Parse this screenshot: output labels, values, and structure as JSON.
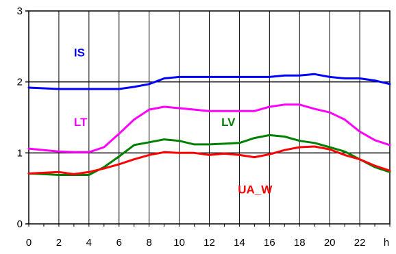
{
  "chart_data": {
    "type": "line",
    "title": "",
    "xlabel": "",
    "ylabel": "",
    "x_unit_label": "h",
    "xlim": [
      0,
      24
    ],
    "ylim": [
      0,
      3
    ],
    "grid": true,
    "x_ticks": [
      {
        "value": 0,
        "label": "0"
      },
      {
        "value": 2,
        "label": "2"
      },
      {
        "value": 4,
        "label": "4"
      },
      {
        "value": 6,
        "label": "6"
      },
      {
        "value": 8,
        "label": "8"
      },
      {
        "value": 10,
        "label": "10"
      },
      {
        "value": 12,
        "label": "12"
      },
      {
        "value": 14,
        "label": "14"
      },
      {
        "value": 16,
        "label": "16"
      },
      {
        "value": 18,
        "label": "18"
      },
      {
        "value": 20,
        "label": "20"
      },
      {
        "value": 22,
        "label": "22"
      }
    ],
    "y_ticks": [
      {
        "value": 0,
        "label": "0"
      },
      {
        "value": 1,
        "label": "1"
      },
      {
        "value": 2,
        "label": "2"
      },
      {
        "value": 3,
        "label": "3"
      }
    ],
    "x": [
      0,
      1,
      2,
      3,
      4,
      5,
      6,
      7,
      8,
      9,
      10,
      11,
      12,
      13,
      14,
      15,
      16,
      17,
      18,
      19,
      20,
      21,
      22,
      23,
      24
    ],
    "series": [
      {
        "name": "IS",
        "color": "#0000ff",
        "label_at": [
          3,
          2.36
        ],
        "values": [
          1.92,
          1.91,
          1.9,
          1.9,
          1.9,
          1.9,
          1.9,
          1.93,
          1.97,
          2.05,
          2.07,
          2.07,
          2.07,
          2.07,
          2.07,
          2.07,
          2.07,
          2.09,
          2.09,
          2.11,
          2.07,
          2.05,
          2.05,
          2.02,
          1.97
        ]
      },
      {
        "name": "LT",
        "color": "#ff00ff",
        "label_at": [
          3,
          1.38
        ],
        "values": [
          1.06,
          1.04,
          1.02,
          1.01,
          1.01,
          1.08,
          1.27,
          1.47,
          1.61,
          1.65,
          1.63,
          1.61,
          1.59,
          1.59,
          1.59,
          1.59,
          1.65,
          1.68,
          1.68,
          1.62,
          1.57,
          1.47,
          1.3,
          1.18,
          1.11
        ]
      },
      {
        "name": "LV",
        "color": "#008000",
        "label_at": [
          12.8,
          1.38
        ],
        "values": [
          0.71,
          0.7,
          0.69,
          0.69,
          0.69,
          0.8,
          0.95,
          1.11,
          1.15,
          1.19,
          1.17,
          1.12,
          1.12,
          1.13,
          1.14,
          1.21,
          1.25,
          1.23,
          1.17,
          1.14,
          1.08,
          1.02,
          0.91,
          0.8,
          0.73
        ]
      },
      {
        "name": "UA_W",
        "color": "#ff0000",
        "label_at": [
          13.9,
          0.43
        ],
        "values": [
          0.71,
          0.72,
          0.73,
          0.7,
          0.73,
          0.78,
          0.84,
          0.91,
          0.97,
          1.01,
          1.0,
          1.0,
          0.97,
          0.99,
          0.97,
          0.94,
          0.98,
          1.04,
          1.08,
          1.09,
          1.05,
          0.97,
          0.91,
          0.82,
          0.75
        ]
      }
    ]
  }
}
